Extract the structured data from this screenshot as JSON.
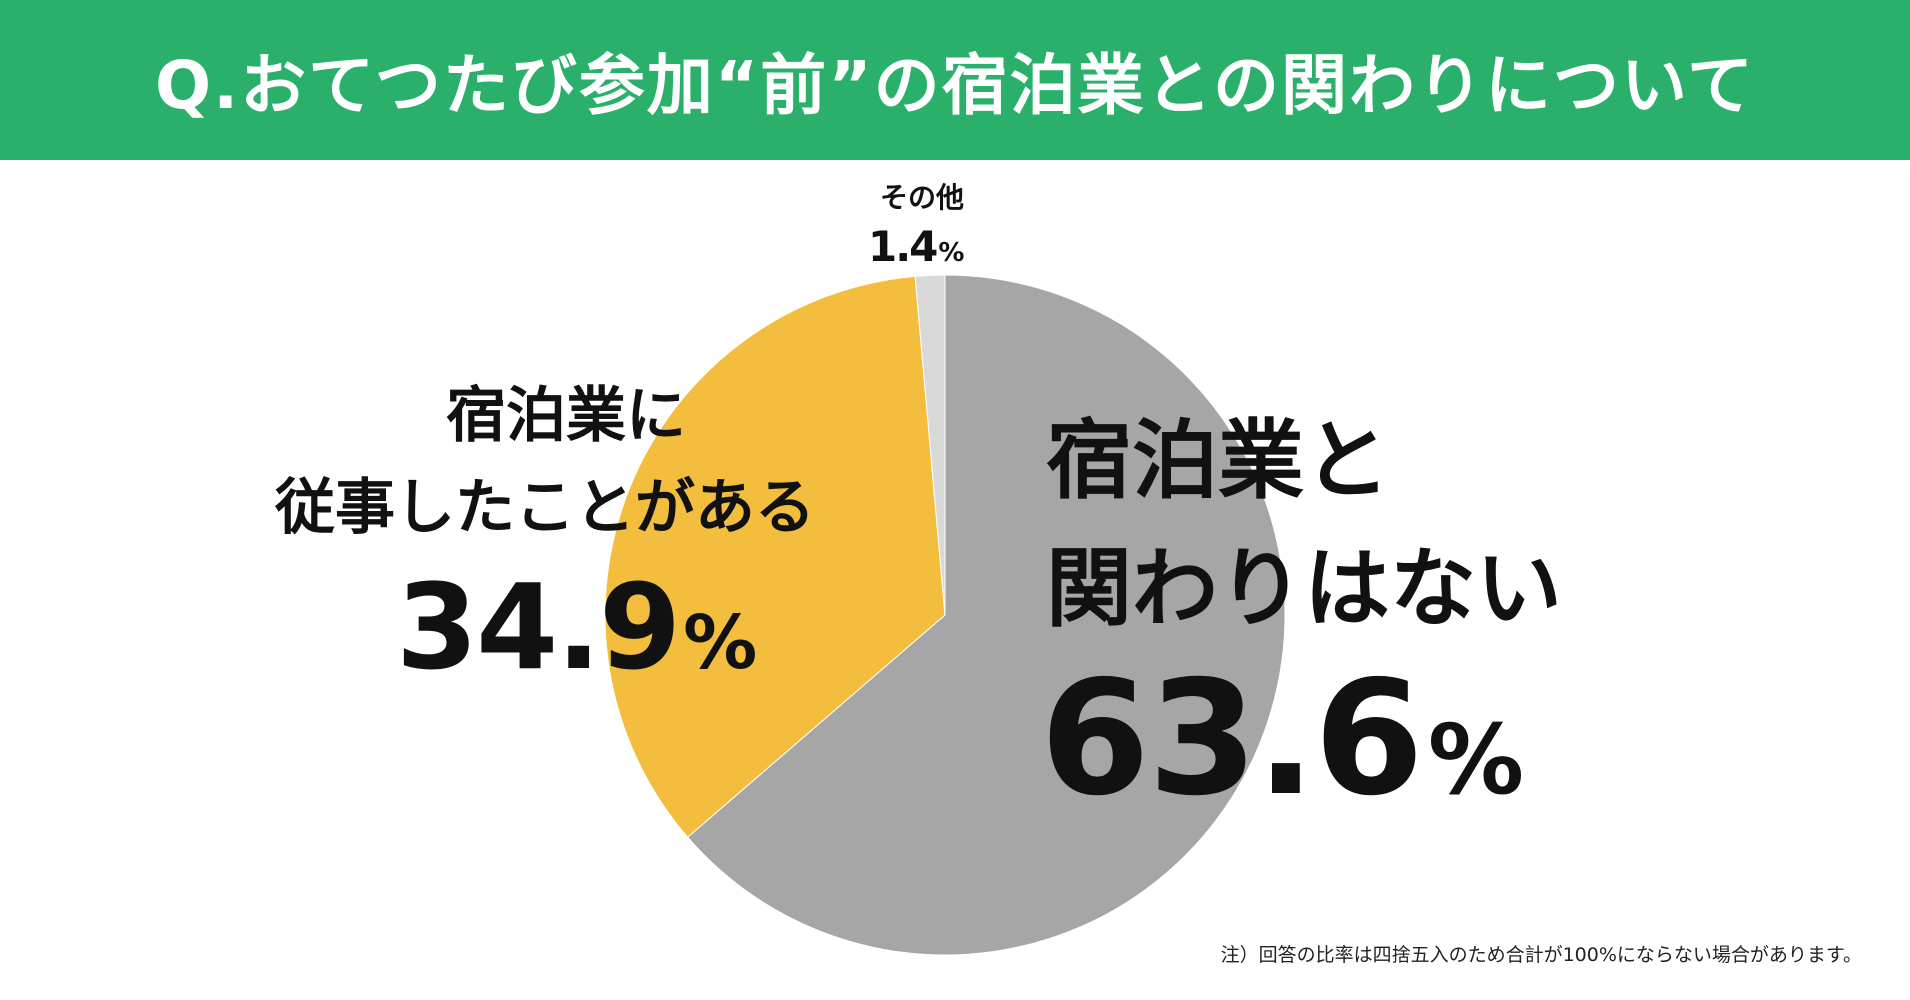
{
  "header": {
    "title": "Q.おてつたび参加“前”の宿泊業との関わりについて",
    "background": "#2ab06a"
  },
  "chart_data": {
    "type": "pie",
    "title": "Q.おてつたび参加“前”の宿泊業との関わりについて",
    "slices": [
      {
        "label": "宿泊業と関わりはない",
        "value": 63.6,
        "color": "#a6a6a6"
      },
      {
        "label": "宿泊業に従事したことがある",
        "value": 34.9,
        "color": "#f3bd3e"
      },
      {
        "label": "その他",
        "value": 1.4,
        "color": "#d9d9d9"
      }
    ],
    "unit": "%"
  },
  "labels": {
    "other": {
      "name": "その他",
      "value": "1.4",
      "sign": "%"
    },
    "worked": {
      "line1": "宿泊業に",
      "line2": "従事したことがある",
      "value": "34.9",
      "sign": "%"
    },
    "none": {
      "line1": "宿泊業と",
      "line2": "関わりはない",
      "value": "63.6",
      "sign": "%"
    }
  },
  "footnote": "注）回答の比率は四捨五入のため合計が100%にならない場合があります。"
}
